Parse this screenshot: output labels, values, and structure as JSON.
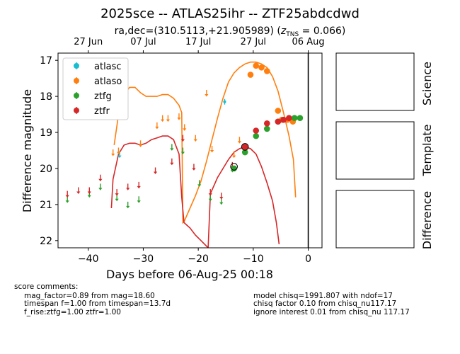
{
  "header": {
    "title": "2025sce -- ATLAS25ihr -- ZTF25abdcdwd",
    "coord_text": "ra,dec=(310.5113,+21.905989) (",
    "z_prefix": "z",
    "z_sub": "TNS",
    "z_suffix": " = 0.066)"
  },
  "chart_data": {
    "type": "scatter",
    "xlabel": "Days before 06-Aug-25 00:18",
    "ylabel": "Difference magnitude",
    "xlim": [
      -45.5,
      2.5
    ],
    "ylim": [
      22.2,
      16.8
    ],
    "y_inverted": true,
    "xticks": [
      -40,
      -30,
      -20,
      -10,
      0
    ],
    "xtick_labels": [
      "−40",
      "−30",
      "−20",
      "−10",
      "0"
    ],
    "yticks": [
      17,
      18,
      19,
      20,
      21,
      22
    ],
    "yticks_labels": [
      "17",
      "18",
      "19",
      "20",
      "21",
      "22"
    ],
    "top_axis_ticks": [
      {
        "x": -40,
        "label": "27 Jun"
      },
      {
        "x": -30,
        "label": "07 Jul"
      },
      {
        "x": -20,
        "label": "17 Jul"
      },
      {
        "x": -10,
        "label": "27 Jul"
      },
      {
        "x": 0,
        "label": "06 Aug"
      }
    ],
    "reference_line_x": 0,
    "grid": false,
    "legend_position": "top-left",
    "series": [
      {
        "name": "atlasc",
        "color": "#17becf",
        "detections": [
          [
            -15.2,
            18.15
          ]
        ],
        "upper_limits": [
          [
            -34.3,
            19.6
          ]
        ]
      },
      {
        "name": "atlaso",
        "color": "#ff7f0e",
        "detections": [
          [
            -10.5,
            17.4
          ],
          [
            -9.5,
            17.15
          ],
          [
            -8.5,
            17.2
          ],
          [
            -7.5,
            17.3
          ],
          [
            -5.5,
            18.4
          ],
          [
            -4.8,
            18.65
          ],
          [
            -3.8,
            18.65
          ],
          [
            -2.8,
            18.7
          ]
        ],
        "upper_limits": [
          [
            -35.5,
            19.55
          ],
          [
            -34.5,
            19.5
          ],
          [
            -30.5,
            19.3
          ],
          [
            -27.5,
            18.8
          ],
          [
            -26.5,
            18.6
          ],
          [
            -25.5,
            18.6
          ],
          [
            -23.5,
            18.55
          ],
          [
            -22.5,
            18.85
          ],
          [
            -20.5,
            19.15
          ],
          [
            -18.5,
            17.9
          ],
          [
            -17.5,
            19.45
          ],
          [
            -13.5,
            19.6
          ],
          [
            -12.5,
            19.2
          ]
        ]
      },
      {
        "name": "ztfg",
        "color": "#2ca02c",
        "detections": [
          [
            -13.5,
            20.0
          ],
          [
            -11.5,
            19.55
          ],
          [
            -9.5,
            19.1
          ],
          [
            -7.5,
            18.9
          ],
          [
            -5.5,
            18.7
          ],
          [
            -2.5,
            18.6
          ],
          [
            -1.5,
            18.6
          ]
        ],
        "upper_limits": [
          [
            -43.8,
            20.85
          ],
          [
            -39.8,
            20.7
          ],
          [
            -37.8,
            20.5
          ],
          [
            -34.8,
            20.8
          ],
          [
            -32.8,
            21.0
          ],
          [
            -30.8,
            20.85
          ],
          [
            -24.8,
            19.4
          ],
          [
            -22.8,
            19.5
          ],
          [
            -19.8,
            20.4
          ],
          [
            -17.8,
            20.8
          ],
          [
            -15.8,
            20.9
          ],
          [
            -13.8,
            20.0
          ]
        ]
      },
      {
        "name": "ztfr",
        "color": "#d62728",
        "detections": [
          [
            -11.5,
            19.4
          ],
          [
            -9.5,
            18.95
          ],
          [
            -7.5,
            18.75
          ],
          [
            -5.5,
            18.7
          ],
          [
            -4.5,
            18.65
          ],
          [
            -3.5,
            18.6
          ]
        ],
        "upper_limits": [
          [
            -43.8,
            20.7
          ],
          [
            -41.8,
            20.6
          ],
          [
            -39.8,
            20.6
          ],
          [
            -37.8,
            20.25
          ],
          [
            -34.8,
            20.65
          ],
          [
            -32.8,
            20.5
          ],
          [
            -30.8,
            20.45
          ],
          [
            -27.8,
            20.05
          ],
          [
            -24.8,
            19.8
          ],
          [
            -22.8,
            19.15
          ],
          [
            -20.8,
            19.95
          ],
          [
            -17.8,
            20.65
          ],
          [
            -15.8,
            20.75
          ],
          [
            -13.8,
            19.9
          ]
        ]
      }
    ],
    "model_curves": [
      {
        "band": "atlaso",
        "color": "#ff7f0e",
        "points": [
          [
            -35.3,
            19.35
          ],
          [
            -34.5,
            18.5
          ],
          [
            -33.5,
            17.95
          ],
          [
            -32.5,
            17.75
          ],
          [
            -31.5,
            17.75
          ],
          [
            -30.5,
            17.9
          ],
          [
            -29.5,
            18.0
          ],
          [
            -28.5,
            18.0
          ],
          [
            -27.5,
            18.0
          ],
          [
            -26.5,
            17.95
          ],
          [
            -25.5,
            17.95
          ],
          [
            -24.5,
            18.05
          ],
          [
            -23.5,
            18.25
          ],
          [
            -23.0,
            18.45
          ],
          [
            -22.8,
            21.5
          ],
          [
            -22.5,
            21.45
          ],
          [
            -21.5,
            21.1
          ],
          [
            -20.5,
            20.75
          ],
          [
            -19.5,
            20.35
          ],
          [
            -18.5,
            19.8
          ],
          [
            -17.5,
            19.2
          ],
          [
            -16.5,
            18.6
          ],
          [
            -15.5,
            18.05
          ],
          [
            -14.5,
            17.6
          ],
          [
            -13.5,
            17.35
          ],
          [
            -12.5,
            17.2
          ],
          [
            -11.5,
            17.1
          ],
          [
            -10.5,
            17.05
          ],
          [
            -9.5,
            17.05
          ],
          [
            -8.5,
            17.1
          ],
          [
            -7.5,
            17.2
          ],
          [
            -6.5,
            17.45
          ],
          [
            -5.5,
            17.85
          ],
          [
            -4.5,
            18.45
          ],
          [
            -3.5,
            19.1
          ],
          [
            -2.7,
            19.75
          ],
          [
            -2.3,
            20.8
          ]
        ]
      },
      {
        "band": "ztfr",
        "color": "#d62728",
        "points": [
          [
            -35.8,
            21.1
          ],
          [
            -35.5,
            20.3
          ],
          [
            -34.5,
            19.6
          ],
          [
            -33.5,
            19.35
          ],
          [
            -32.5,
            19.3
          ],
          [
            -31.5,
            19.3
          ],
          [
            -30.5,
            19.35
          ],
          [
            -29.5,
            19.3
          ],
          [
            -28.5,
            19.2
          ],
          [
            -27.5,
            19.15
          ],
          [
            -26.5,
            19.1
          ],
          [
            -25.5,
            19.1
          ],
          [
            -24.5,
            19.2
          ],
          [
            -23.5,
            19.6
          ],
          [
            -23.0,
            20.8
          ],
          [
            -22.6,
            21.5
          ],
          [
            -21.5,
            21.65
          ],
          [
            -20.5,
            21.85
          ],
          [
            -19.5,
            22.0
          ],
          [
            -18.2,
            22.2
          ],
          [
            -17.8,
            20.7
          ],
          [
            -16.5,
            20.25
          ],
          [
            -15.5,
            20.0
          ],
          [
            -14.5,
            19.75
          ],
          [
            -13.5,
            19.55
          ],
          [
            -12.5,
            19.45
          ],
          [
            -11.5,
            19.4
          ],
          [
            -10.5,
            19.45
          ],
          [
            -9.5,
            19.6
          ],
          [
            -8.5,
            19.95
          ],
          [
            -7.5,
            20.4
          ],
          [
            -6.5,
            20.9
          ],
          [
            -5.8,
            21.5
          ],
          [
            -5.3,
            22.1
          ]
        ]
      }
    ],
    "circled_points": [
      [
        -13.5,
        19.95
      ],
      [
        -11.5,
        19.4
      ]
    ]
  },
  "panels": [
    {
      "label": "Science"
    },
    {
      "label": "Template"
    },
    {
      "label": "Difference"
    }
  ],
  "score_comments": {
    "heading": "score comments:",
    "left_lines": [
      "mag_factor=0.89 from mag=18.60",
      "timespan f=1.00 from timespan=13.7d",
      "f_rise:ztfg=1.00 ztfr=1.00"
    ],
    "right_lines": [
      "model chisq=1991.807 with ndof=17",
      "chisq factor 0.10 from chisq_nu117.17",
      "ignore interest 0.01 from chisq_nu 117.17"
    ]
  }
}
